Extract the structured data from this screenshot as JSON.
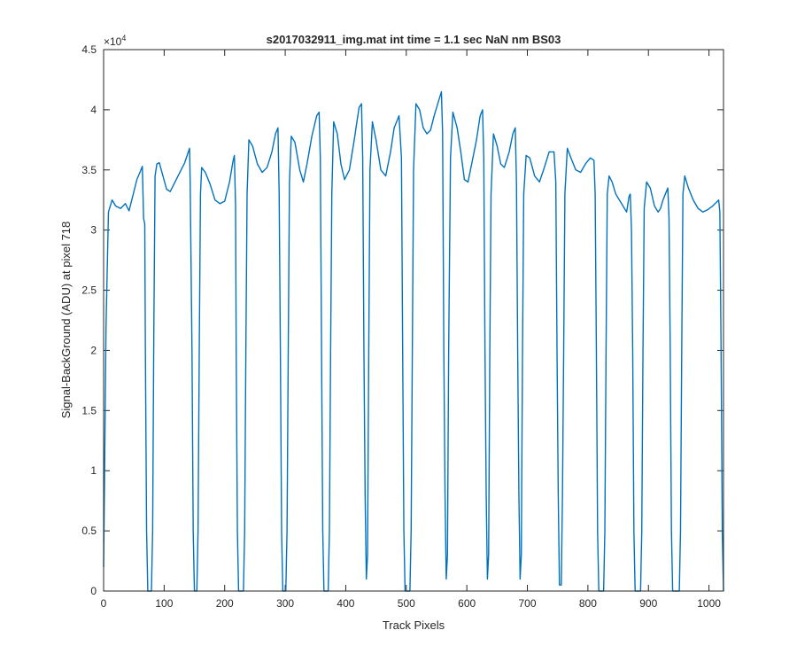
{
  "chart_data": {
    "type": "line",
    "title": "s2017032911_img.mat int time = 1.1 sec  NaN nm BS03",
    "xlabel": "Track Pixels",
    "ylabel": "Signal-BackGround (ADU) at pixel 718",
    "xlim": [
      0,
      1024
    ],
    "ylim": [
      0,
      45000
    ],
    "xticks": [
      "0",
      "100",
      "200",
      "300",
      "400",
      "500",
      "600",
      "700",
      "800",
      "900",
      "1000"
    ],
    "yticks": [
      "0",
      "0.5",
      "1",
      "1.5",
      "2",
      "2.5",
      "3",
      "3.5",
      "4",
      "4.5"
    ],
    "y_exponent_label": "×10",
    "y_exponent": "4",
    "grid": false,
    "line_color": "#0072bd",
    "series": [
      {
        "points": [
          [
            0,
            2000
          ],
          [
            4,
            22000
          ],
          [
            8,
            31500
          ],
          [
            14,
            32500
          ],
          [
            20,
            32000
          ],
          [
            28,
            31800
          ],
          [
            36,
            32200
          ],
          [
            42,
            31600
          ],
          [
            48,
            32800
          ],
          [
            55,
            34200
          ],
          [
            60,
            34800
          ],
          [
            64,
            35300
          ],
          [
            66,
            31000
          ],
          [
            68,
            30500
          ],
          [
            69,
            20000
          ],
          [
            71,
            5000
          ],
          [
            73,
            0
          ],
          [
            79,
            0
          ],
          [
            81,
            5000
          ],
          [
            83,
            22000
          ],
          [
            85,
            34500
          ],
          [
            88,
            35500
          ],
          [
            92,
            35600
          ],
          [
            98,
            34500
          ],
          [
            104,
            33400
          ],
          [
            110,
            33200
          ],
          [
            118,
            34000
          ],
          [
            126,
            34800
          ],
          [
            134,
            35600
          ],
          [
            140,
            36500
          ],
          [
            142,
            36800
          ],
          [
            143,
            34000
          ],
          [
            146,
            20000
          ],
          [
            148,
            5000
          ],
          [
            150,
            0
          ],
          [
            154,
            0
          ],
          [
            156,
            5000
          ],
          [
            158,
            20000
          ],
          [
            160,
            33000
          ],
          [
            162,
            35200
          ],
          [
            168,
            34800
          ],
          [
            176,
            33800
          ],
          [
            184,
            32500
          ],
          [
            192,
            32200
          ],
          [
            200,
            32400
          ],
          [
            208,
            34000
          ],
          [
            214,
            35800
          ],
          [
            216,
            36200
          ],
          [
            218,
            32000
          ],
          [
            219,
            20000
          ],
          [
            221,
            5000
          ],
          [
            223,
            0
          ],
          [
            231,
            0
          ],
          [
            233,
            5000
          ],
          [
            235,
            20000
          ],
          [
            237,
            33000
          ],
          [
            240,
            37500
          ],
          [
            246,
            37000
          ],
          [
            254,
            35500
          ],
          [
            262,
            34800
          ],
          [
            270,
            35200
          ],
          [
            278,
            36500
          ],
          [
            284,
            38000
          ],
          [
            288,
            38500
          ],
          [
            290,
            33000
          ],
          [
            292,
            20000
          ],
          [
            294,
            5000
          ],
          [
            296,
            0
          ],
          [
            301,
            0
          ],
          [
            303,
            5000
          ],
          [
            305,
            20000
          ],
          [
            307,
            34000
          ],
          [
            310,
            37800
          ],
          [
            316,
            37300
          ],
          [
            324,
            35000
          ],
          [
            330,
            34000
          ],
          [
            336,
            35500
          ],
          [
            344,
            37800
          ],
          [
            352,
            39500
          ],
          [
            356,
            39800
          ],
          [
            358,
            36000
          ],
          [
            360,
            20000
          ],
          [
            362,
            5000
          ],
          [
            364,
            0
          ],
          [
            371,
            0
          ],
          [
            373,
            5000
          ],
          [
            375,
            20000
          ],
          [
            377,
            33000
          ],
          [
            380,
            39000
          ],
          [
            386,
            38000
          ],
          [
            392,
            35500
          ],
          [
            398,
            34200
          ],
          [
            406,
            35000
          ],
          [
            414,
            37500
          ],
          [
            422,
            40200
          ],
          [
            426,
            40500
          ],
          [
            428,
            36000
          ],
          [
            430,
            20000
          ],
          [
            432,
            8000
          ],
          [
            434,
            1000
          ],
          [
            436,
            3000
          ],
          [
            438,
            20000
          ],
          [
            440,
            35000
          ],
          [
            444,
            39000
          ],
          [
            450,
            37500
          ],
          [
            458,
            35000
          ],
          [
            466,
            34500
          ],
          [
            474,
            36500
          ],
          [
            480,
            38500
          ],
          [
            488,
            39500
          ],
          [
            492,
            36000
          ],
          [
            494,
            20000
          ],
          [
            496,
            5000
          ],
          [
            498,
            0
          ],
          [
            506,
            0
          ],
          [
            508,
            5000
          ],
          [
            510,
            20000
          ],
          [
            512,
            35000
          ],
          [
            516,
            40500
          ],
          [
            522,
            40000
          ],
          [
            528,
            38500
          ],
          [
            534,
            38000
          ],
          [
            540,
            38300
          ],
          [
            546,
            39500
          ],
          [
            552,
            40500
          ],
          [
            558,
            41500
          ],
          [
            560,
            38000
          ],
          [
            562,
            20000
          ],
          [
            564,
            8000
          ],
          [
            566,
            1000
          ],
          [
            568,
            3000
          ],
          [
            570,
            20000
          ],
          [
            573,
            36000
          ],
          [
            577,
            39800
          ],
          [
            584,
            38500
          ],
          [
            590,
            36500
          ],
          [
            596,
            34200
          ],
          [
            602,
            34000
          ],
          [
            608,
            35500
          ],
          [
            616,
            37500
          ],
          [
            622,
            39500
          ],
          [
            626,
            40000
          ],
          [
            628,
            36000
          ],
          [
            630,
            20000
          ],
          [
            632,
            8000
          ],
          [
            634,
            1000
          ],
          [
            636,
            3000
          ],
          [
            638,
            20000
          ],
          [
            640,
            33000
          ],
          [
            644,
            38000
          ],
          [
            650,
            37000
          ],
          [
            656,
            35500
          ],
          [
            662,
            35200
          ],
          [
            670,
            36500
          ],
          [
            676,
            38000
          ],
          [
            680,
            38500
          ],
          [
            682,
            34000
          ],
          [
            684,
            20000
          ],
          [
            686,
            8000
          ],
          [
            688,
            1000
          ],
          [
            690,
            3000
          ],
          [
            692,
            20000
          ],
          [
            694,
            33000
          ],
          [
            698,
            36200
          ],
          [
            704,
            36000
          ],
          [
            712,
            34500
          ],
          [
            720,
            34000
          ],
          [
            728,
            35200
          ],
          [
            736,
            36500
          ],
          [
            744,
            36500
          ],
          [
            747,
            34000
          ],
          [
            749,
            20000
          ],
          [
            751,
            8000
          ],
          [
            753,
            500
          ],
          [
            756,
            500
          ],
          [
            758,
            8000
          ],
          [
            760,
            20000
          ],
          [
            762,
            33000
          ],
          [
            766,
            36800
          ],
          [
            772,
            36000
          ],
          [
            780,
            35000
          ],
          [
            788,
            34800
          ],
          [
            796,
            35500
          ],
          [
            804,
            36000
          ],
          [
            810,
            35800
          ],
          [
            812,
            33000
          ],
          [
            814,
            20000
          ],
          [
            816,
            5000
          ],
          [
            818,
            0
          ],
          [
            826,
            0
          ],
          [
            828,
            5000
          ],
          [
            830,
            20000
          ],
          [
            832,
            33000
          ],
          [
            835,
            34500
          ],
          [
            840,
            34000
          ],
          [
            846,
            33000
          ],
          [
            852,
            32500
          ],
          [
            858,
            32000
          ],
          [
            864,
            31500
          ],
          [
            868,
            32800
          ],
          [
            870,
            33000
          ],
          [
            872,
            30000
          ],
          [
            874,
            20000
          ],
          [
            876,
            5000
          ],
          [
            878,
            0
          ],
          [
            887,
            0
          ],
          [
            889,
            5000
          ],
          [
            891,
            20000
          ],
          [
            893,
            31800
          ],
          [
            897,
            34000
          ],
          [
            903,
            33500
          ],
          [
            910,
            32000
          ],
          [
            916,
            31500
          ],
          [
            920,
            31800
          ],
          [
            924,
            32500
          ],
          [
            928,
            33000
          ],
          [
            932,
            33500
          ],
          [
            934,
            31000
          ],
          [
            936,
            20000
          ],
          [
            938,
            5000
          ],
          [
            940,
            0
          ],
          [
            951,
            0
          ],
          [
            953,
            5000
          ],
          [
            955,
            20000
          ],
          [
            957,
            33000
          ],
          [
            960,
            34500
          ],
          [
            966,
            33500
          ],
          [
            974,
            32500
          ],
          [
            982,
            31800
          ],
          [
            990,
            31500
          ],
          [
            998,
            31700
          ],
          [
            1006,
            32000
          ],
          [
            1012,
            32300
          ],
          [
            1016,
            32500
          ],
          [
            1018,
            31500
          ],
          [
            1020,
            20000
          ],
          [
            1022,
            5000
          ],
          [
            1024,
            0
          ]
        ]
      }
    ]
  }
}
